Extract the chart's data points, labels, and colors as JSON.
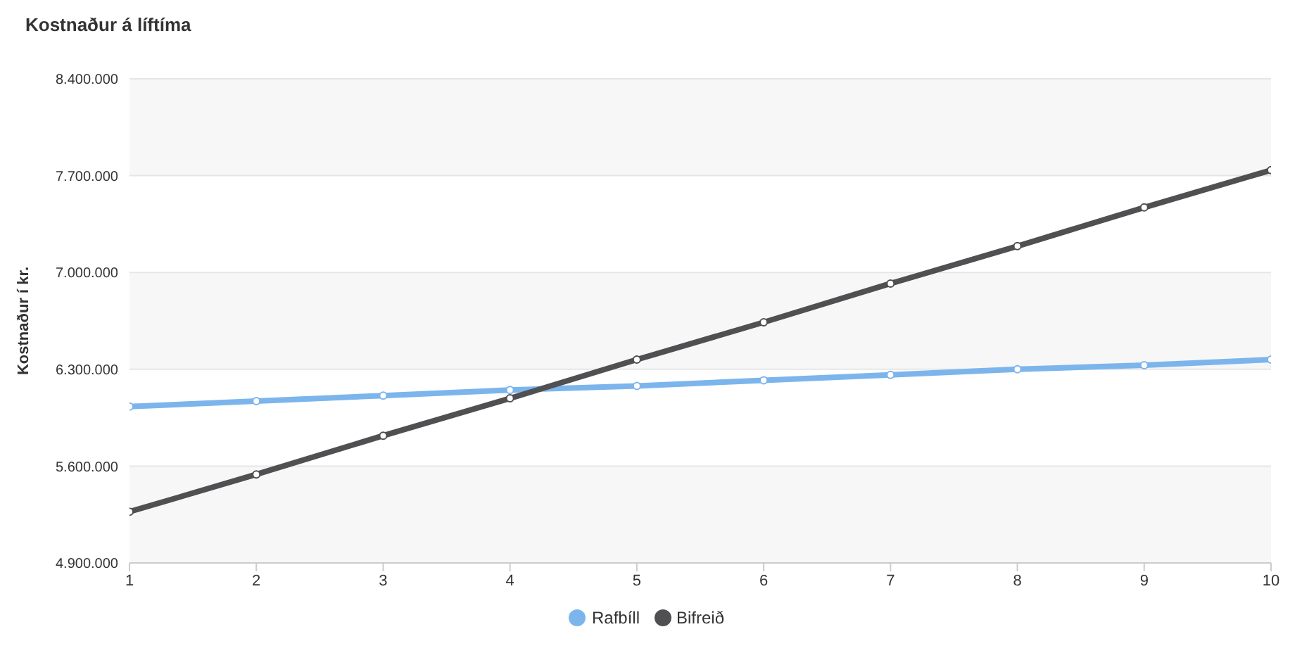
{
  "chart_data": {
    "type": "line",
    "title": "Kostnaður á líftíma",
    "ylabel": "Kostnaður í kr.",
    "x": [
      1,
      2,
      3,
      4,
      5,
      6,
      7,
      8,
      9,
      10
    ],
    "series": [
      {
        "name": "Rafbíll",
        "color": "#7cb5ec",
        "values": [
          6030000,
          6070000,
          6110000,
          6150000,
          6180000,
          6220000,
          6260000,
          6300000,
          6330000,
          6370000
        ]
      },
      {
        "name": "Bifreið",
        "color": "#505053",
        "values": [
          5270000,
          5540000,
          5820000,
          6090000,
          6370000,
          6640000,
          6920000,
          7190000,
          7470000,
          7740000
        ]
      }
    ],
    "xlim": [
      1,
      10
    ],
    "xticks": [
      1,
      2,
      3,
      4,
      5,
      6,
      7,
      8,
      9,
      10
    ],
    "ylim": [
      4900000,
      8400000
    ],
    "yticks": [
      {
        "value": 4900000,
        "label": "4.900.000"
      },
      {
        "value": 5600000,
        "label": "5.600.000"
      },
      {
        "value": 6300000,
        "label": "6.300.000"
      },
      {
        "value": 7000000,
        "label": "7.000.000"
      },
      {
        "value": 7700000,
        "label": "7.700.000"
      },
      {
        "value": 8400000,
        "label": "8.400.000"
      }
    ],
    "grid": "y",
    "legend": "bottom",
    "marker": "circle",
    "line_style": "solid"
  }
}
